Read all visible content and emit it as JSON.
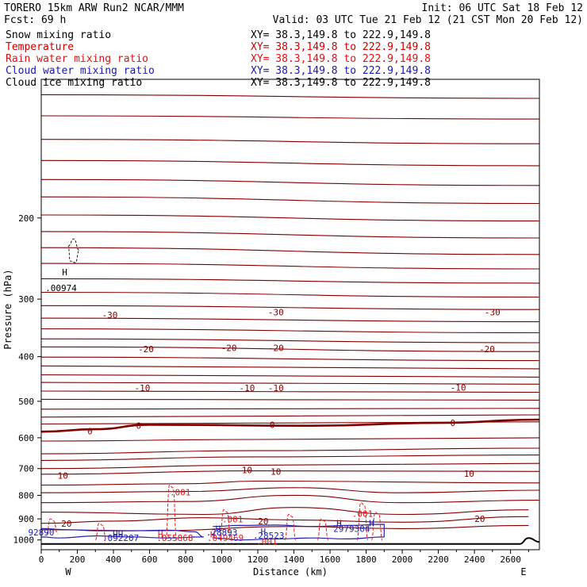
{
  "header": {
    "left_line1": "TORERO  15km ARW   Run2    NCAR/MMM",
    "left_line2": "Fcst:   69 h",
    "right_line1": "Init: 06 UTC Sat 18 Feb 12",
    "right_line2": "Valid: 03 UTC Tue 21 Feb 12 (21 CST Mon 20 Feb 12)"
  },
  "fields": [
    {
      "name": "Snow mixing ratio",
      "xy": "XY=  38.3,149.8 to 222.9,149.8",
      "color": "#000000"
    },
    {
      "name": "Temperature",
      "xy": "XY=  38.3,149.8 to 222.9,149.8",
      "color": "#cc0000"
    },
    {
      "name": "Rain water mixing ratio",
      "xy": "XY=  38.3,149.8 to 222.9,149.8",
      "color": "#dd1111"
    },
    {
      "name": "Cloud water mixing ratio",
      "xy": "XY=  38.3,149.8 to 222.9,149.8",
      "color": "#1a1aa6"
    },
    {
      "name": "Cloud ice mixing ratio",
      "xy": "XY=  38.3,149.8 to 222.9,149.8",
      "color": "#000000"
    }
  ],
  "chart_data": {
    "type": "line",
    "subtype": "vertical cross-section contour plot",
    "xlabel": "Distance (km)",
    "ylabel": "Pressure (hPa)",
    "xlim": [
      0,
      2760
    ],
    "ylim": [
      1050,
      100
    ],
    "y_scale": "log",
    "x_ticks": [
      0,
      200,
      400,
      600,
      800,
      1000,
      1200,
      1400,
      1600,
      1800,
      2000,
      2200,
      2400,
      2600
    ],
    "y_ticks": [
      200,
      300,
      400,
      500,
      600,
      700,
      800,
      900,
      1000
    ],
    "end_labels": {
      "left": "W",
      "right": "E"
    },
    "colors": {
      "temperature": "#800000",
      "rain": "#e41a1c",
      "cloud_water": "#2020b0",
      "terrain": "#000000"
    },
    "temperature_contours": [
      {
        "value": -55,
        "points": [
          [
            0,
            108
          ],
          [
            2760,
            110
          ]
        ]
      },
      {
        "value": -53,
        "points": [
          [
            0,
            120
          ],
          [
            2760,
            122
          ]
        ]
      },
      {
        "value": -51,
        "points": [
          [
            0,
            135
          ],
          [
            2760,
            138
          ]
        ]
      },
      {
        "value": -49,
        "points": [
          [
            0,
            150
          ],
          [
            2760,
            154
          ]
        ]
      },
      {
        "value": -47,
        "points": [
          [
            0,
            165
          ],
          [
            2760,
            170
          ]
        ]
      },
      {
        "value": -45,
        "points": [
          [
            0,
            180
          ],
          [
            2760,
            186
          ]
        ]
      },
      {
        "value": -43,
        "points": [
          [
            0,
            197
          ],
          [
            2760,
            203
          ]
        ]
      },
      {
        "value": -41,
        "points": [
          [
            0,
            214
          ],
          [
            2760,
            221
          ]
        ]
      },
      {
        "value": -39,
        "points": [
          [
            0,
            232
          ],
          [
            2760,
            240
          ]
        ]
      },
      {
        "value": -37,
        "points": [
          [
            0,
            251
          ],
          [
            2760,
            258
          ]
        ]
      },
      {
        "value": -35,
        "points": [
          [
            0,
            271
          ],
          [
            2760,
            277
          ]
        ]
      },
      {
        "value": -33,
        "points": [
          [
            0,
            290
          ],
          [
            2760,
            297
          ]
        ]
      },
      {
        "value": -31,
        "points": [
          [
            0,
            310
          ],
          [
            2760,
            316
          ]
        ]
      },
      {
        "value": -29,
        "points": [
          [
            0,
            330
          ],
          [
            2760,
            336
          ]
        ]
      },
      {
        "value": -27,
        "points": [
          [
            0,
            348
          ],
          [
            2760,
            355
          ]
        ]
      },
      {
        "value": -25,
        "points": [
          [
            0,
            366
          ],
          [
            2760,
            373
          ]
        ]
      },
      {
        "value": -23,
        "points": [
          [
            0,
            381
          ],
          [
            2760,
            390
          ]
        ]
      },
      {
        "value": -21,
        "points": [
          [
            0,
            401
          ],
          [
            2760,
            408
          ]
        ]
      },
      {
        "value": -19,
        "points": [
          [
            0,
            419
          ],
          [
            2760,
            425
          ]
        ]
      },
      {
        "value": -17,
        "points": [
          [
            0,
            438
          ],
          [
            2760,
            443
          ]
        ]
      },
      {
        "value": -15,
        "points": [
          [
            0,
            455
          ],
          [
            2760,
            459
          ]
        ]
      },
      {
        "value": -13,
        "points": [
          [
            0,
            475
          ],
          [
            2760,
            478
          ]
        ]
      },
      {
        "value": -11,
        "points": [
          [
            0,
            495
          ],
          [
            2760,
            497
          ]
        ]
      },
      {
        "value": -9,
        "points": [
          [
            0,
            520
          ],
          [
            2760,
            518
          ]
        ]
      },
      {
        "value": -7,
        "points": [
          [
            0,
            541
          ],
          [
            2760,
            535
          ]
        ]
      },
      {
        "value": -5,
        "points": [
          [
            0,
            560
          ],
          [
            2760,
            554
          ]
        ]
      },
      {
        "value": 0,
        "bold": true,
        "points": [
          [
            0,
            582
          ],
          [
            300,
            575
          ],
          [
            600,
            562
          ],
          [
            1500,
            565
          ],
          [
            2200,
            557
          ],
          [
            2760,
            548
          ]
        ]
      },
      {
        "value": 2,
        "points": [
          [
            0,
            610
          ],
          [
            1200,
            605
          ],
          [
            2760,
            600
          ]
        ]
      },
      {
        "value": 4,
        "points": [
          [
            0,
            650
          ],
          [
            1200,
            640
          ],
          [
            2760,
            632
          ]
        ]
      },
      {
        "value": 6,
        "points": [
          [
            0,
            672
          ],
          [
            1200,
            660
          ],
          [
            2760,
            654
          ]
        ]
      },
      {
        "value": 8,
        "points": [
          [
            0,
            700
          ],
          [
            1200,
            688
          ],
          [
            2760,
            682
          ]
        ]
      },
      {
        "value": 10,
        "points": [
          [
            0,
            720
          ],
          [
            1200,
            708
          ],
          [
            2760,
            710
          ]
        ]
      },
      {
        "value": 12,
        "points": [
          [
            0,
            760
          ],
          [
            800,
            755
          ],
          [
            1200,
            745
          ],
          [
            2760,
            752
          ]
        ]
      },
      {
        "value": 14,
        "points": [
          [
            0,
            790
          ],
          [
            800,
            785
          ],
          [
            1400,
            770
          ],
          [
            2000,
            790
          ],
          [
            2760,
            780
          ]
        ]
      },
      {
        "value": 16,
        "points": [
          [
            0,
            830
          ],
          [
            800,
            825
          ],
          [
            1400,
            800
          ],
          [
            2000,
            830
          ],
          [
            2760,
            820
          ]
        ]
      },
      {
        "value": 18,
        "points": [
          [
            0,
            870
          ],
          [
            900,
            880
          ],
          [
            1400,
            850
          ],
          [
            2000,
            880
          ],
          [
            2700,
            860
          ]
        ]
      },
      {
        "value": 20,
        "points": [
          [
            0,
            920
          ],
          [
            400,
            910
          ],
          [
            900,
            895
          ],
          [
            1400,
            905
          ],
          [
            2000,
            915
          ],
          [
            2700,
            890
          ]
        ]
      },
      {
        "value": 22,
        "points": [
          [
            0,
            950
          ],
          [
            600,
            955
          ],
          [
            1400,
            935
          ],
          [
            2000,
            945
          ],
          [
            2700,
            930
          ]
        ]
      }
    ],
    "temperature_labels": [
      {
        "text": "-30",
        "x": 380,
        "p": 325
      },
      {
        "text": "-30",
        "x": 1300,
        "p": 320
      },
      {
        "text": "-30",
        "x": 2500,
        "p": 320
      },
      {
        "text": "-20",
        "x": 580,
        "p": 385
      },
      {
        "text": "-20",
        "x": 1040,
        "p": 383
      },
      {
        "text": "-20",
        "x": 1300,
        "p": 383
      },
      {
        "text": "-20",
        "x": 2470,
        "p": 385
      },
      {
        "text": "-10",
        "x": 560,
        "p": 468
      },
      {
        "text": "-10",
        "x": 1140,
        "p": 468
      },
      {
        "text": "-10",
        "x": 1300,
        "p": 468
      },
      {
        "text": "-10",
        "x": 2310,
        "p": 467
      },
      {
        "text": "0",
        "x": 270,
        "p": 580
      },
      {
        "text": "0",
        "x": 540,
        "p": 565
      },
      {
        "text": "0",
        "x": 1280,
        "p": 562
      },
      {
        "text": "0",
        "x": 2280,
        "p": 557
      },
      {
        "text": "10",
        "x": 120,
        "p": 725
      },
      {
        "text": "10",
        "x": 1140,
        "p": 705
      },
      {
        "text": "10",
        "x": 1300,
        "p": 710
      },
      {
        "text": "10",
        "x": 2370,
        "p": 717
      },
      {
        "text": "20",
        "x": 140,
        "p": 922
      },
      {
        "text": "20",
        "x": 1230,
        "p": 910
      },
      {
        "text": "20",
        "x": 2430,
        "p": 900
      }
    ],
    "rain_labels": [
      {
        "text": ".001",
        "x": 770,
        "p": 787
      },
      {
        "text": ".001",
        "x": 1060,
        "p": 902
      },
      {
        "text": ".001",
        "x": 1780,
        "p": 877
      },
      {
        "text": ".001",
        "x": 1250,
        "p": 1007
      },
      {
        "text": ".055868",
        "x": 740,
        "p": 990
      },
      {
        "text": ".049469",
        "x": 1020,
        "p": 990
      },
      {
        "text": "H",
        "x": 660,
        "p": 972
      },
      {
        "text": "H",
        "x": 950,
        "p": 972
      }
    ],
    "cloud_water_labels": [
      {
        "text": ".28893",
        "x": 1000,
        "p": 962
      },
      {
        "text": ".28523",
        "x": 1260,
        "p": 977
      },
      {
        "text": ".092207",
        "x": 440,
        "p": 990
      },
      {
        "text": "92890",
        "x": 0,
        "p": 962
      },
      {
        "text": "2979304",
        "x": 1720,
        "p": 945
      },
      {
        "text": "H",
        "x": 980,
        "p": 945
      },
      {
        "text": "H",
        "x": 1230,
        "p": 958
      },
      {
        "text": "H",
        "x": 410,
        "p": 972
      },
      {
        "text": "H",
        "x": 440,
        "p": 972
      },
      {
        "text": "H",
        "x": 1650,
        "p": 920
      },
      {
        "text": "H",
        "x": 1830,
        "p": 920
      }
    ],
    "snow_labels": [
      {
        "text": "H",
        "x": 130,
        "p": 262
      },
      {
        "text": ".00974",
        "x": 110,
        "p": 284
      }
    ],
    "terrain": [
      [
        0,
        1020
      ],
      [
        2200,
        1020
      ],
      [
        2650,
        1020
      ],
      [
        2700,
        990
      ],
      [
        2760,
        1010
      ]
    ]
  }
}
